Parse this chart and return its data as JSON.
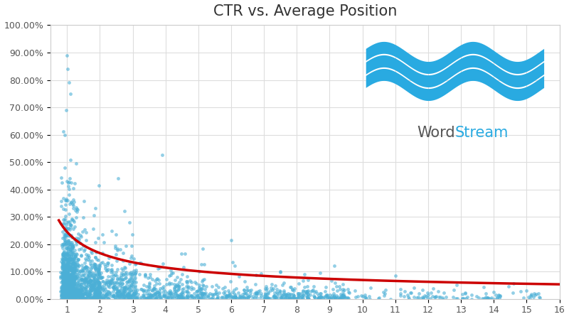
{
  "title": "CTR vs. Average Position",
  "title_fontsize": 15,
  "background_color": "#ffffff",
  "plot_bg_color": "#ffffff",
  "grid_color": "#dddddd",
  "scatter_color": "#4bafd6",
  "scatter_alpha": 0.6,
  "scatter_size": 12,
  "curve_color": "#cc0000",
  "curve_linewidth": 2.5,
  "xlim": [
    0.5,
    16
  ],
  "ylim": [
    0.0,
    1.0
  ],
  "ytick_labels": [
    "0.00%",
    "10.00%",
    "20.00%",
    "30.00%",
    "40.00%",
    "50.00%",
    "60.00%",
    "70.00%",
    "80.00%",
    "90.00%",
    "100.00%"
  ],
  "ytick_values": [
    0.0,
    0.1,
    0.2,
    0.3,
    0.4,
    0.5,
    0.6,
    0.7,
    0.8,
    0.9,
    1.0
  ],
  "xtick_values": [
    1,
    2,
    3,
    4,
    5,
    6,
    7,
    8,
    9,
    10,
    11,
    12,
    13,
    14,
    15,
    16
  ],
  "curve_a": 0.245,
  "curve_b": -0.55,
  "wave_color": "#29aae1",
  "word_color": "#555555",
  "stream_color": "#29aae1",
  "logo_fontsize": 15
}
